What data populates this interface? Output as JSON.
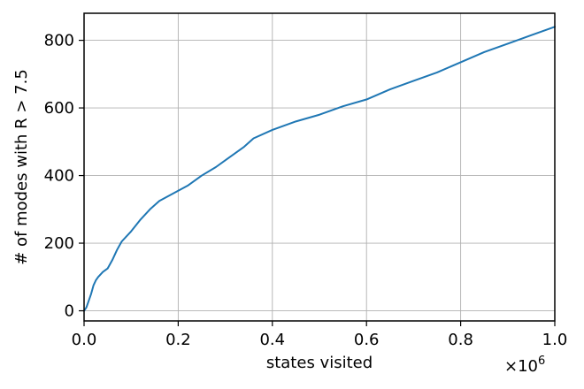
{
  "chart_data": {
    "type": "line",
    "title": "",
    "xlabel": "states visited",
    "ylabel": "# of modes with R > 7.5",
    "x_scale_multiplier": "×10",
    "x_scale_exponent": "6",
    "xlim": [
      0,
      1000000
    ],
    "ylim": [
      -30,
      880
    ],
    "grid": true,
    "x_ticks": [
      0,
      200000,
      400000,
      600000,
      800000,
      1000000
    ],
    "x_tick_labels": [
      "0.0",
      "0.2",
      "0.4",
      "0.6",
      "0.8",
      "1.0"
    ],
    "y_ticks": [
      0,
      200,
      400,
      600,
      800
    ],
    "y_tick_labels": [
      "0",
      "200",
      "400",
      "600",
      "800"
    ],
    "series": [
      {
        "color": "#1f77b4",
        "x": [
          0,
          5000,
          10000,
          15000,
          20000,
          25000,
          30000,
          40000,
          50000,
          60000,
          70000,
          80000,
          100000,
          120000,
          140000,
          160000,
          180000,
          200000,
          220000,
          250000,
          280000,
          300000,
          340000,
          360000,
          400000,
          450000,
          500000,
          550000,
          600000,
          650000,
          700000,
          750000,
          800000,
          850000,
          900000,
          950000,
          1000000
        ],
        "y": [
          0,
          10,
          30,
          50,
          75,
          90,
          100,
          115,
          125,
          150,
          180,
          205,
          235,
          270,
          300,
          325,
          340,
          355,
          370,
          400,
          425,
          445,
          485,
          510,
          535,
          560,
          580,
          605,
          625,
          655,
          680,
          705,
          735,
          765,
          790,
          815,
          840
        ]
      }
    ]
  }
}
